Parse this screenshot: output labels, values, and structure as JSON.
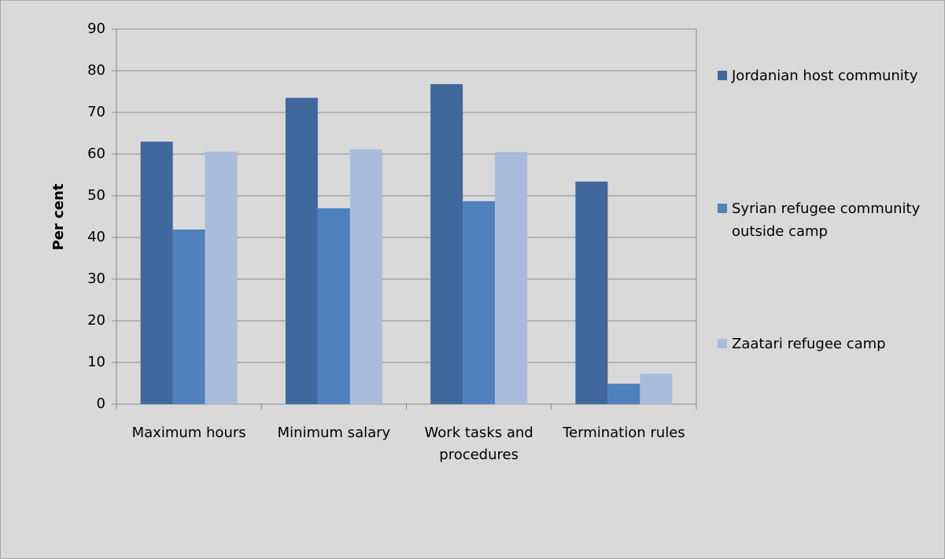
{
  "chart_data": {
    "type": "bar",
    "y_label": "Per cent",
    "categories": [
      "Maximum hours",
      "Minimum salary",
      "Work tasks and procedures",
      "Termination rules"
    ],
    "series": [
      {
        "name": "Jordanian host community",
        "color": "#3f689c",
        "values": [
          63,
          73.5,
          76.8,
          53.4
        ]
      },
      {
        "name": "Syrian refugee community outside camp",
        "color": "#4f81bd",
        "values": [
          41.9,
          47,
          48.7,
          4.9
        ]
      },
      {
        "name": "Zaatari refugee camp",
        "color": "#a9bcdc",
        "values": [
          60.6,
          61.1,
          60.5,
          7.3
        ]
      }
    ],
    "ylim": [
      0,
      90
    ],
    "yticks": [
      0,
      10,
      20,
      30,
      40,
      50,
      60,
      70,
      80,
      90
    ],
    "grid": true,
    "legend": "right"
  }
}
